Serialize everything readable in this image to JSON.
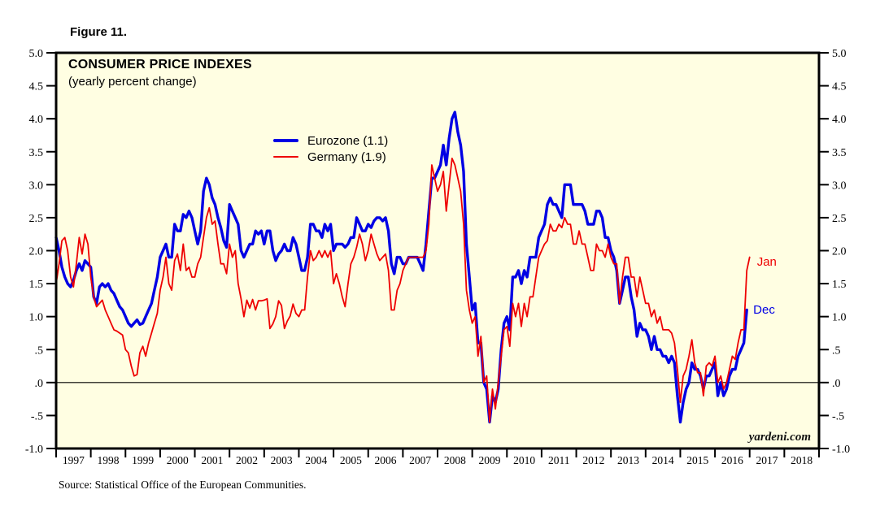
{
  "figure_label": "Figure 11.",
  "chart": {
    "title": "CONSUMER PRICE INDEXES",
    "subtitle": "(yearly percent change)",
    "watermark": "yardeni.com",
    "end_labels": {
      "eurozone": "Dec",
      "germany": "Jan"
    }
  },
  "legend": {
    "items": [
      {
        "label": "Eurozone (1.1)",
        "color": "#0000e4",
        "thickness": 4
      },
      {
        "label": "Germany (1.9)",
        "color": "#ee0000",
        "thickness": 2
      }
    ]
  },
  "source_note": "Source: Statistical Office of the European Communities.",
  "colors": {
    "plot_bg": "#fffee2",
    "axis": "#000000",
    "eurozone": "#0000e4",
    "germany": "#ee0000"
  },
  "chart_data": {
    "type": "line",
    "title": "CONSUMER PRICE INDEXES",
    "subtitle": "(yearly percent change)",
    "x_frequency": "monthly",
    "x_start": "1997-01",
    "x_axis_years": [
      "1997",
      "1998",
      "1999",
      "2000",
      "2001",
      "2002",
      "2003",
      "2004",
      "2005",
      "2006",
      "2007",
      "2008",
      "2009",
      "2010",
      "2011",
      "2012",
      "2013",
      "2014",
      "2015",
      "2016",
      "2017",
      "2018"
    ],
    "ylim": [
      -1.0,
      5.0
    ],
    "y_ticks": [
      5.0,
      4.5,
      4.0,
      3.5,
      3.0,
      2.5,
      2.0,
      1.5,
      1.0,
      0.5,
      0.0,
      -0.5,
      -1.0
    ],
    "y_tick_labels": [
      "5.0",
      "4.5",
      "4.0",
      "3.5",
      "3.0",
      "2.5",
      "2.0",
      "1.5",
      "1.0",
      ".5",
      ".0",
      "-.5",
      "-1.0"
    ],
    "grid": false,
    "zero_line": true,
    "legend_position": "inside-top-center",
    "series": [
      {
        "name": "Eurozone (1.1)",
        "color": "#0000e4",
        "line_width": 3.4,
        "end_label": "Dec",
        "last_value": 1.1,
        "values": [
          2.2,
          2.0,
          1.75,
          1.6,
          1.5,
          1.45,
          1.55,
          1.7,
          1.8,
          1.7,
          1.85,
          1.8,
          1.75,
          1.3,
          1.2,
          1.45,
          1.5,
          1.45,
          1.5,
          1.4,
          1.35,
          1.25,
          1.15,
          1.1,
          1.0,
          0.9,
          0.85,
          0.9,
          0.95,
          0.88,
          0.9,
          1.0,
          1.1,
          1.2,
          1.4,
          1.6,
          1.9,
          2.0,
          2.1,
          1.9,
          1.9,
          2.4,
          2.3,
          2.3,
          2.55,
          2.5,
          2.6,
          2.5,
          2.3,
          2.1,
          2.3,
          2.9,
          3.1,
          3.0,
          2.8,
          2.7,
          2.5,
          2.35,
          2.15,
          2.05,
          2.7,
          2.6,
          2.5,
          2.4,
          2.0,
          1.9,
          2.0,
          2.1,
          2.1,
          2.3,
          2.25,
          2.3,
          2.1,
          2.3,
          2.3,
          2.0,
          1.85,
          1.95,
          2.0,
          2.1,
          2.0,
          2.0,
          2.2,
          2.1,
          1.9,
          1.7,
          1.7,
          1.9,
          2.4,
          2.4,
          2.3,
          2.3,
          2.2,
          2.4,
          2.3,
          2.4,
          2.0,
          2.1,
          2.1,
          2.1,
          2.05,
          2.1,
          2.2,
          2.2,
          2.5,
          2.4,
          2.3,
          2.3,
          2.4,
          2.35,
          2.45,
          2.5,
          2.5,
          2.45,
          2.5,
          2.3,
          1.8,
          1.65,
          1.9,
          1.9,
          1.8,
          1.8,
          1.9,
          1.9,
          1.9,
          1.9,
          1.8,
          1.7,
          2.1,
          2.6,
          3.1,
          3.1,
          3.2,
          3.3,
          3.6,
          3.3,
          3.7,
          4.0,
          4.1,
          3.8,
          3.6,
          3.2,
          2.1,
          1.6,
          1.1,
          1.2,
          0.6,
          0.6,
          0.0,
          -0.1,
          -0.6,
          -0.2,
          -0.3,
          -0.1,
          0.5,
          0.9,
          1.0,
          0.8,
          1.6,
          1.6,
          1.7,
          1.5,
          1.7,
          1.6,
          1.9,
          1.9,
          1.9,
          2.2,
          2.3,
          2.4,
          2.7,
          2.8,
          2.7,
          2.7,
          2.6,
          2.5,
          3.0,
          3.0,
          3.0,
          2.7,
          2.7,
          2.7,
          2.7,
          2.6,
          2.4,
          2.4,
          2.4,
          2.6,
          2.6,
          2.5,
          2.2,
          2.2,
          2.0,
          1.9,
          1.7,
          1.2,
          1.4,
          1.6,
          1.6,
          1.3,
          1.1,
          0.7,
          0.9,
          0.8,
          0.8,
          0.7,
          0.5,
          0.7,
          0.5,
          0.5,
          0.4,
          0.4,
          0.3,
          0.4,
          0.3,
          -0.2,
          -0.6,
          -0.3,
          -0.1,
          0.0,
          0.3,
          0.2,
          0.2,
          0.1,
          -0.1,
          0.1,
          0.1,
          0.2,
          0.3,
          -0.2,
          0.0,
          -0.2,
          -0.1,
          0.1,
          0.2,
          0.2,
          0.4,
          0.5,
          0.6,
          1.1
        ]
      },
      {
        "name": "Germany (1.9)",
        "color": "#ee0000",
        "line_width": 1.8,
        "end_label": "Jan",
        "last_value": 1.9,
        "values": [
          1.5,
          1.8,
          2.15,
          2.2,
          2.0,
          1.6,
          1.45,
          1.8,
          2.2,
          1.95,
          2.25,
          2.1,
          1.6,
          1.3,
          1.15,
          1.2,
          1.25,
          1.1,
          1.0,
          0.9,
          0.8,
          0.78,
          0.75,
          0.72,
          0.5,
          0.45,
          0.25,
          0.1,
          0.12,
          0.45,
          0.55,
          0.4,
          0.6,
          0.75,
          0.9,
          1.05,
          1.4,
          1.6,
          1.9,
          1.5,
          1.4,
          1.85,
          1.95,
          1.7,
          2.1,
          1.7,
          1.75,
          1.6,
          1.6,
          1.8,
          1.9,
          2.2,
          2.5,
          2.65,
          2.4,
          2.45,
          2.1,
          1.8,
          1.8,
          1.65,
          2.1,
          1.9,
          2.0,
          1.5,
          1.27,
          1.0,
          1.25,
          1.13,
          1.26,
          1.1,
          1.24,
          1.24,
          1.25,
          1.27,
          0.82,
          0.89,
          1.0,
          1.24,
          1.17,
          0.82,
          0.93,
          1.01,
          1.19,
          1.05,
          1.0,
          1.1,
          1.1,
          1.6,
          2.0,
          1.85,
          1.9,
          2.0,
          1.9,
          2.0,
          1.9,
          2.0,
          1.5,
          1.65,
          1.5,
          1.3,
          1.15,
          1.5,
          1.8,
          1.9,
          2.05,
          2.25,
          2.1,
          1.85,
          2.0,
          2.25,
          2.1,
          1.95,
          1.85,
          1.9,
          1.95,
          1.7,
          1.1,
          1.1,
          1.4,
          1.5,
          1.7,
          1.8,
          1.9,
          1.9,
          1.9,
          1.9,
          1.9,
          1.9,
          2.0,
          2.4,
          3.3,
          3.1,
          2.9,
          3.0,
          3.2,
          2.6,
          3.0,
          3.4,
          3.3,
          3.1,
          2.9,
          2.4,
          1.4,
          1.1,
          0.9,
          1.0,
          0.4,
          0.7,
          0.0,
          0.1,
          -0.6,
          -0.1,
          -0.4,
          0.0,
          0.4,
          0.8,
          0.85,
          0.55,
          1.2,
          1.0,
          1.2,
          0.85,
          1.2,
          1.0,
          1.3,
          1.3,
          1.6,
          1.9,
          2.0,
          2.1,
          2.15,
          2.4,
          2.3,
          2.3,
          2.4,
          2.35,
          2.5,
          2.4,
          2.4,
          2.1,
          2.1,
          2.3,
          2.1,
          2.1,
          1.9,
          1.7,
          1.7,
          2.1,
          2.0,
          2.0,
          1.9,
          2.1,
          1.9,
          1.8,
          1.8,
          1.2,
          1.6,
          1.9,
          1.9,
          1.6,
          1.6,
          1.3,
          1.6,
          1.4,
          1.2,
          1.2,
          1.0,
          1.1,
          0.9,
          1.0,
          0.8,
          0.8,
          0.8,
          0.75,
          0.6,
          0.2,
          -0.3,
          0.1,
          0.2,
          0.4,
          0.65,
          0.3,
          0.15,
          0.15,
          -0.2,
          0.25,
          0.3,
          0.25,
          0.4,
          0.0,
          0.1,
          -0.1,
          0.0,
          0.2,
          0.4,
          0.35,
          0.6,
          0.8,
          0.8,
          1.7,
          1.9
        ]
      }
    ]
  }
}
